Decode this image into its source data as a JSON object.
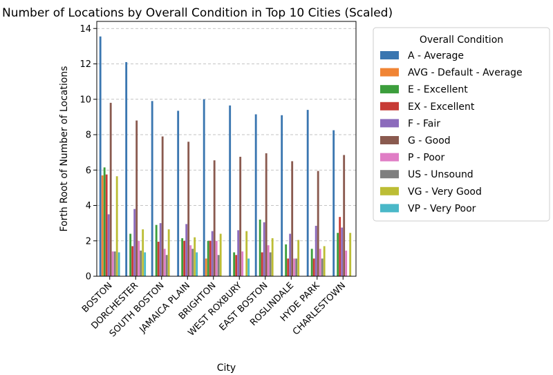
{
  "chart_data": {
    "type": "bar",
    "title": "Number of Locations by Overall Condition in Top 10 Cities (Scaled)",
    "xlabel": "City",
    "ylabel": "Forth Root of Number of Locations",
    "ylim": [
      0,
      14.4
    ],
    "yticks": [
      0,
      2,
      4,
      6,
      8,
      10,
      12,
      14
    ],
    "grid": "y-dashed",
    "legend": {
      "title": "Overall Condition",
      "placement": "outside-right"
    },
    "categories": [
      "BOSTON",
      "DORCHESTER",
      "SOUTH BOSTON",
      "JAMAICA PLAIN",
      "BRIGHTON",
      "WEST ROXBURY",
      "EAST BOSTON",
      "ROSLINDALE",
      "HYDE PARK",
      "CHARLESTOWN"
    ],
    "series": [
      {
        "name": "A - Average",
        "color": "#3a76b0",
        "values": [
          13.55,
          12.1,
          9.9,
          9.35,
          10.0,
          9.65,
          9.15,
          9.1,
          9.4,
          8.25
        ]
      },
      {
        "name": "AVG - Default - Average",
        "color": "#f08434",
        "values": [
          5.7,
          0,
          0,
          0,
          1.0,
          0,
          0,
          0,
          0,
          0
        ]
      },
      {
        "name": "E - Excellent",
        "color": "#3c9e3c",
        "values": [
          6.15,
          2.4,
          2.9,
          2.15,
          2.0,
          1.35,
          3.2,
          1.8,
          1.55,
          2.45
        ]
      },
      {
        "name": "EX - Excellent",
        "color": "#c73b35",
        "values": [
          5.75,
          1.7,
          1.95,
          2.0,
          2.0,
          1.2,
          1.35,
          1.0,
          1.0,
          3.35
        ]
      },
      {
        "name": "F - Fair",
        "color": "#8c6bbc",
        "values": [
          3.5,
          3.8,
          3.0,
          2.95,
          2.55,
          2.6,
          3.05,
          2.4,
          2.85,
          2.75
        ]
      },
      {
        "name": "G - Good",
        "color": "#8a5a4f",
        "values": [
          9.8,
          8.8,
          7.9,
          7.6,
          6.55,
          6.75,
          6.95,
          6.5,
          5.95,
          6.85
        ]
      },
      {
        "name": "P - Poor",
        "color": "#e07dc5",
        "values": [
          1.4,
          2.0,
          1.55,
          1.75,
          2.0,
          1.4,
          1.75,
          1.0,
          1.55,
          1.45
        ]
      },
      {
        "name": "US - Unsound",
        "color": "#7f7f7f",
        "values": [
          1.4,
          1.45,
          1.2,
          1.55,
          1.2,
          0,
          1.35,
          1.0,
          1.0,
          0
        ]
      },
      {
        "name": "VG - Very Good",
        "color": "#bcbd35",
        "values": [
          5.65,
          2.65,
          2.65,
          2.2,
          2.4,
          2.55,
          2.15,
          2.05,
          1.7,
          2.45
        ]
      },
      {
        "name": "VP - Very Poor",
        "color": "#4ab8c8",
        "values": [
          1.35,
          1.35,
          0,
          1.35,
          0,
          1.0,
          0,
          0,
          0,
          0
        ]
      }
    ]
  }
}
